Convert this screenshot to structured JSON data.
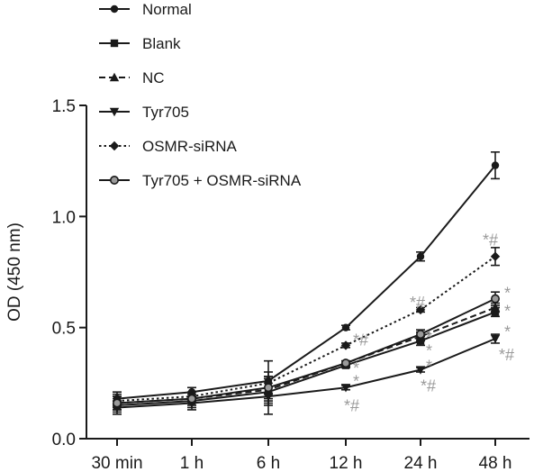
{
  "chart_data": {
    "type": "line",
    "title": "",
    "xlabel": "",
    "ylabel": "OD (450 nm)",
    "categories": [
      "30 min",
      "1 h",
      "6 h",
      "12 h",
      "24 h",
      "48 h"
    ],
    "ylim": [
      0.0,
      1.5
    ],
    "yticks": [
      "0.0",
      "0.5",
      "1.0",
      "1.5"
    ],
    "grid": false,
    "legend_position": "top-left",
    "series": [
      {
        "name": "Normal",
        "marker": "circle",
        "dash": "solid",
        "color": "#1a1a1a",
        "values": [
          0.18,
          0.21,
          0.26,
          0.5,
          0.82,
          1.23
        ],
        "errors": [
          0.03,
          0.02,
          0.09,
          0.01,
          0.02,
          0.06
        ]
      },
      {
        "name": "Blank",
        "marker": "square",
        "dash": "solid",
        "color": "#1a1a1a",
        "values": [
          0.15,
          0.17,
          0.21,
          0.33,
          0.44,
          0.57
        ],
        "errors": [
          0.03,
          0.03,
          0.06,
          0.01,
          0.02,
          0.02
        ]
      },
      {
        "name": "NC",
        "marker": "triangle-up",
        "dash": "dashed",
        "color": "#1a1a1a",
        "values": [
          0.16,
          0.18,
          0.22,
          0.34,
          0.46,
          0.59
        ],
        "errors": [
          0.03,
          0.03,
          0.06,
          0.01,
          0.02,
          0.02
        ]
      },
      {
        "name": "Tyr705",
        "marker": "triangle-down",
        "dash": "solid",
        "color": "#1a1a1a",
        "values": [
          0.14,
          0.16,
          0.19,
          0.23,
          0.31,
          0.45
        ],
        "errors": [
          0.03,
          0.03,
          0.08,
          0.01,
          0.01,
          0.02
        ]
      },
      {
        "name": "OSMR-siRNA",
        "marker": "diamond",
        "dash": "dotted",
        "color": "#1a1a1a",
        "values": [
          0.17,
          0.19,
          0.25,
          0.42,
          0.58,
          0.82
        ],
        "errors": [
          0.03,
          0.02,
          0.05,
          0.01,
          0.01,
          0.04
        ]
      },
      {
        "name": "Tyr705 + OSMR-siRNA",
        "marker": "hollow-circle",
        "dash": "solid",
        "color": "#1a1a1a",
        "values": [
          0.16,
          0.18,
          0.23,
          0.34,
          0.47,
          0.63
        ],
        "errors": [
          0.03,
          0.02,
          0.05,
          0.01,
          0.02,
          0.03
        ]
      }
    ],
    "annotations": [
      {
        "text": "*#",
        "category": "12 h",
        "series": "OSMR-siRNA",
        "color": "#9a9a9a"
      },
      {
        "text": "*",
        "category": "12 h",
        "series": "Tyr705 + OSMR-siRNA",
        "color": "#9a9a9a"
      },
      {
        "text": "*",
        "category": "12 h",
        "series": "Blank",
        "color": "#9a9a9a"
      },
      {
        "text": "*#",
        "category": "12 h",
        "series": "Tyr705",
        "color": "#9a9a9a"
      },
      {
        "text": "*#",
        "category": "24 h",
        "series": "OSMR-siRNA",
        "color": "#9a9a9a"
      },
      {
        "text": "*",
        "category": "24 h",
        "series": "Tyr705 + OSMR-siRNA",
        "color": "#9a9a9a"
      },
      {
        "text": "*",
        "category": "24 h",
        "series": "NC",
        "color": "#9a9a9a"
      },
      {
        "text": "*",
        "category": "24 h",
        "series": "Blank",
        "color": "#9a9a9a"
      },
      {
        "text": "*#",
        "category": "24 h",
        "series": "Tyr705",
        "color": "#9a9a9a"
      },
      {
        "text": "*#",
        "category": "48 h",
        "series": "OSMR-siRNA",
        "color": "#9a9a9a"
      },
      {
        "text": "*",
        "category": "48 h",
        "series": "Tyr705 + OSMR-siRNA",
        "color": "#9a9a9a"
      },
      {
        "text": "*",
        "category": "48 h",
        "series": "NC",
        "color": "#9a9a9a"
      },
      {
        "text": "*",
        "category": "48 h",
        "series": "Blank",
        "color": "#9a9a9a"
      },
      {
        "text": "*#",
        "category": "48 h",
        "series": "Tyr705",
        "color": "#9a9a9a"
      }
    ]
  }
}
